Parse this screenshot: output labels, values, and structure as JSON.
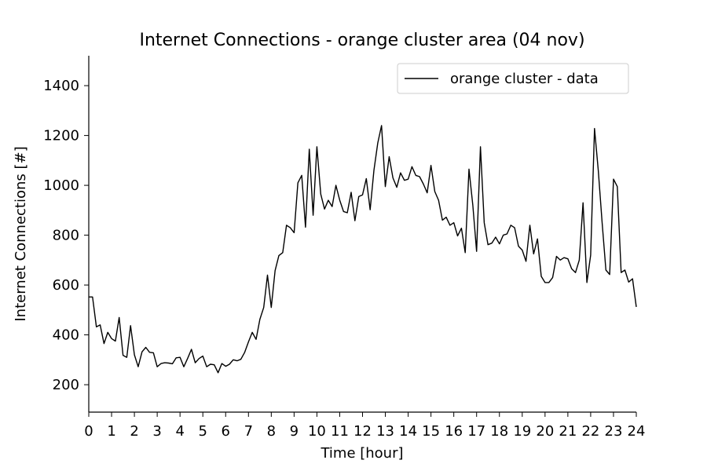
{
  "chart_data": {
    "type": "line",
    "title": "Internet Connections - orange cluster area (04 nov)",
    "xlabel": "Time [hour]",
    "ylabel": "Internet Connections [#]",
    "xlim": [
      0,
      24
    ],
    "ylim": [
      90,
      1520
    ],
    "xticks": [
      0,
      1,
      2,
      3,
      4,
      5,
      6,
      7,
      8,
      9,
      10,
      11,
      12,
      13,
      14,
      15,
      16,
      17,
      18,
      19,
      20,
      21,
      22,
      23,
      24
    ],
    "yticks": [
      200,
      400,
      600,
      800,
      1000,
      1200,
      1400
    ],
    "grid": false,
    "legend_position": "top-right",
    "series": [
      {
        "name": "orange cluster - data",
        "color": "#000000",
        "step_hours": 0.16667,
        "values": [
          552,
          552,
          432,
          440,
          365,
          410,
          385,
          375,
          470,
          318,
          310,
          437,
          320,
          272,
          332,
          350,
          330,
          328,
          272,
          285,
          288,
          287,
          284,
          308,
          310,
          272,
          305,
          342,
          288,
          305,
          315,
          272,
          282,
          280,
          248,
          285,
          274,
          282,
          300,
          296,
          302,
          330,
          372,
          410,
          382,
          462,
          510,
          640,
          510,
          658,
          718,
          730,
          840,
          830,
          810,
          1010,
          1040,
          832,
          1145,
          880,
          1155,
          965,
          905,
          940,
          915,
          1000,
          940,
          895,
          890,
          972,
          858,
          955,
          962,
          1027,
          902,
          1060,
          1170,
          1240,
          995,
          1115,
          1030,
          992,
          1050,
          1020,
          1025,
          1075,
          1040,
          1035,
          1005,
          970,
          1080,
          975,
          940,
          860,
          872,
          840,
          850,
          797,
          828,
          730,
          1065,
          920,
          735,
          1155,
          850,
          762,
          768,
          792,
          765,
          800,
          805,
          840,
          830,
          756,
          740,
          695,
          840,
          725,
          785,
          635,
          610,
          610,
          630,
          715,
          700,
          710,
          705,
          665,
          650,
          700,
          930,
          610,
          720,
          1228,
          1060,
          850,
          660,
          642,
          1025,
          995,
          650,
          660,
          612,
          625,
          512
        ]
      }
    ]
  }
}
